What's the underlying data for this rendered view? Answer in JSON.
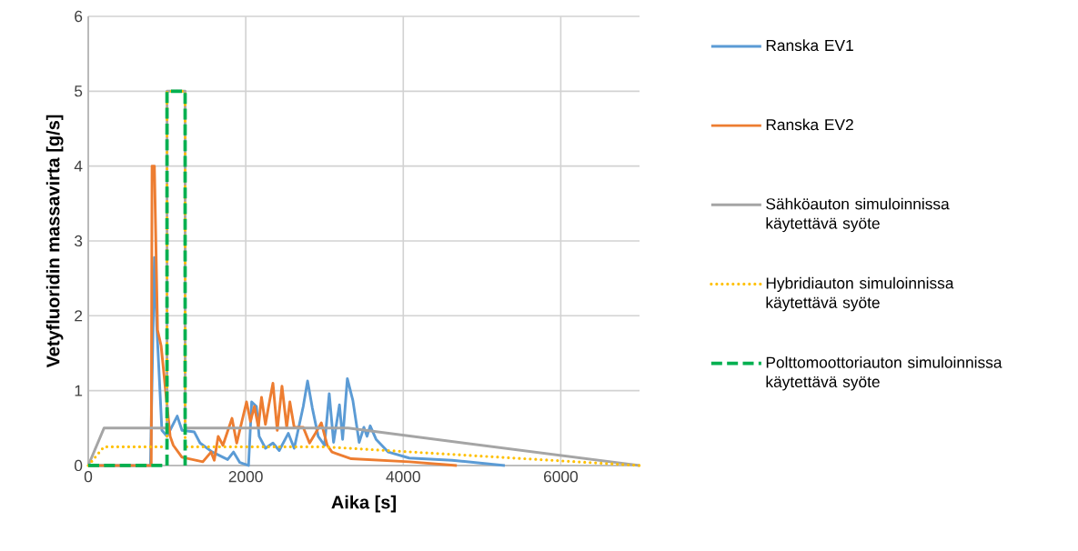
{
  "chart_data": {
    "type": "line",
    "xlabel": "Aika [s]",
    "ylabel": "Vetyfluoridin massavirta [g/s]",
    "xlim": [
      0,
      7000
    ],
    "ylim": [
      0,
      6
    ],
    "xticks": [
      0,
      2000,
      4000,
      6000
    ],
    "yticks": [
      0,
      1,
      2,
      3,
      4,
      5,
      6
    ],
    "grid": true,
    "legend": "right",
    "series": [
      {
        "name": "Ranska EV1",
        "color": "#5b9bd5",
        "line_style": "solid",
        "x": [
          0,
          790,
          840,
          870,
          935,
          1000,
          1130,
          1190,
          1345,
          1420,
          1575,
          1770,
          1845,
          1925,
          2035,
          2075,
          2135,
          2170,
          2250,
          2345,
          2425,
          2540,
          2615,
          2730,
          2785,
          2845,
          2920,
          3000,
          3060,
          3115,
          3190,
          3230,
          3290,
          3360,
          3440,
          3500,
          3540,
          3580,
          3655,
          3810,
          4075,
          4620,
          5290
        ],
        "values": [
          0,
          0,
          2.78,
          1.87,
          0.47,
          0.39,
          0.66,
          0.47,
          0.45,
          0.3,
          0.18,
          0.08,
          0.18,
          0.04,
          0,
          0.85,
          0.79,
          0.39,
          0.23,
          0.3,
          0.2,
          0.43,
          0.23,
          0.79,
          1.13,
          0.77,
          0.39,
          0.27,
          0.96,
          0.31,
          0.81,
          0.35,
          1.16,
          0.87,
          0.31,
          0.51,
          0.39,
          0.53,
          0.35,
          0.18,
          0.1,
          0.07,
          0
        ]
      },
      {
        "name": "Ranska EV2",
        "color": "#ed7d31",
        "line_style": "solid",
        "x": [
          0,
          800,
          810,
          840,
          880,
          925,
          1040,
          1080,
          1190,
          1455,
          1560,
          1600,
          1650,
          1710,
          1825,
          1885,
          2010,
          2060,
          2110,
          2160,
          2200,
          2250,
          2290,
          2345,
          2400,
          2460,
          2520,
          2560,
          2615,
          2730,
          2810,
          2885,
          2960,
          3035,
          3095,
          3150,
          3340,
          4075,
          4680
        ],
        "values": [
          0,
          0,
          4.0,
          4.0,
          1.81,
          1.6,
          0.39,
          0.27,
          0.11,
          0.05,
          0.18,
          0.07,
          0.39,
          0.27,
          0.63,
          0.3,
          0.85,
          0.59,
          0.79,
          0.51,
          0.91,
          0.55,
          0.79,
          1.1,
          0.47,
          1.06,
          0.51,
          0.85,
          0.51,
          0.51,
          0.3,
          0.43,
          0.57,
          0.27,
          0.18,
          0.16,
          0.09,
          0.05,
          0
        ]
      },
      {
        "name": "Sähköauton simuloinnissa käytettävä syöte",
        "color": "#a5a5a5",
        "line_style": "solid",
        "x": [
          0,
          200,
          1000,
          1000,
          1230,
          1230,
          3300,
          7000
        ],
        "values": [
          0,
          0.5,
          0.5,
          5,
          5,
          0.5,
          0.5,
          0
        ]
      },
      {
        "name": "Hybridiauton simuloinnissa käytettävä syöte",
        "color": "#ffc000",
        "line_style": "dotted",
        "x": [
          0,
          200,
          1000,
          1000,
          1230,
          1230,
          3000,
          7000
        ],
        "values": [
          0,
          0.25,
          0.25,
          5,
          5,
          0.25,
          0.25,
          0
        ]
      },
      {
        "name": "Polttomoottoriauton simuloinnissa käytettävä syöte",
        "color": "#00b050",
        "line_style": "dashed",
        "x": [
          0,
          1000,
          1000,
          1230,
          1230
        ],
        "values": [
          0,
          0,
          5,
          5,
          0
        ]
      }
    ]
  }
}
